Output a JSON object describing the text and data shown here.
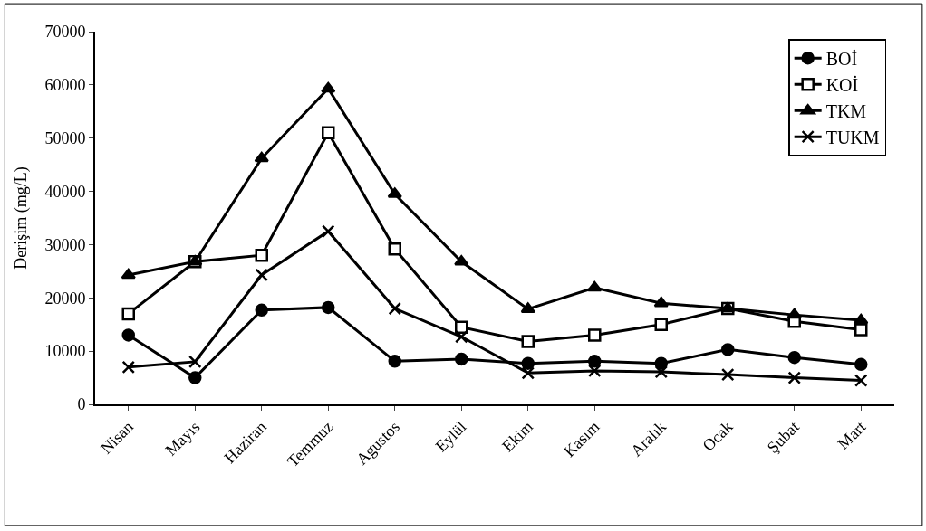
{
  "chart_data": {
    "type": "line",
    "ylabel": "Derişim (mg/L)",
    "categories": [
      "Nisan",
      "Mayıs",
      "Haziran",
      "Temmuz",
      "Agustos",
      "Eylül",
      "Ekim",
      "Kasım",
      "Aralık",
      "Ocak",
      "Şubat",
      "Mart"
    ],
    "series": [
      {
        "name": "BOİ",
        "color": "#000000",
        "marker": "circle",
        "values": [
          13000,
          5000,
          17700,
          18200,
          8100,
          8500,
          7700,
          8100,
          7700,
          10300,
          8800,
          7500
        ]
      },
      {
        "name": "KOİ",
        "color": "#000000",
        "marker": "square",
        "values": [
          17000,
          26800,
          28000,
          51000,
          29200,
          14500,
          11800,
          13000,
          15000,
          18000,
          15600,
          14000
        ]
      },
      {
        "name": "TKM",
        "color": "#000000",
        "marker": "triangle",
        "values": [
          24300,
          26800,
          46200,
          59300,
          39500,
          26800,
          17900,
          21900,
          19000,
          18000,
          16800,
          15800
        ]
      },
      {
        "name": "TUKM",
        "color": "#000000",
        "marker": "cross",
        "values": [
          7000,
          8000,
          24300,
          32500,
          18000,
          12700,
          5900,
          6300,
          6100,
          5600,
          5000,
          4500
        ]
      }
    ],
    "ylim": [
      0,
      70000
    ],
    "yticks": [
      0,
      10000,
      20000,
      30000,
      40000,
      50000,
      60000,
      70000
    ],
    "grid": false,
    "legend": "top right",
    "line_style": "solid"
  }
}
